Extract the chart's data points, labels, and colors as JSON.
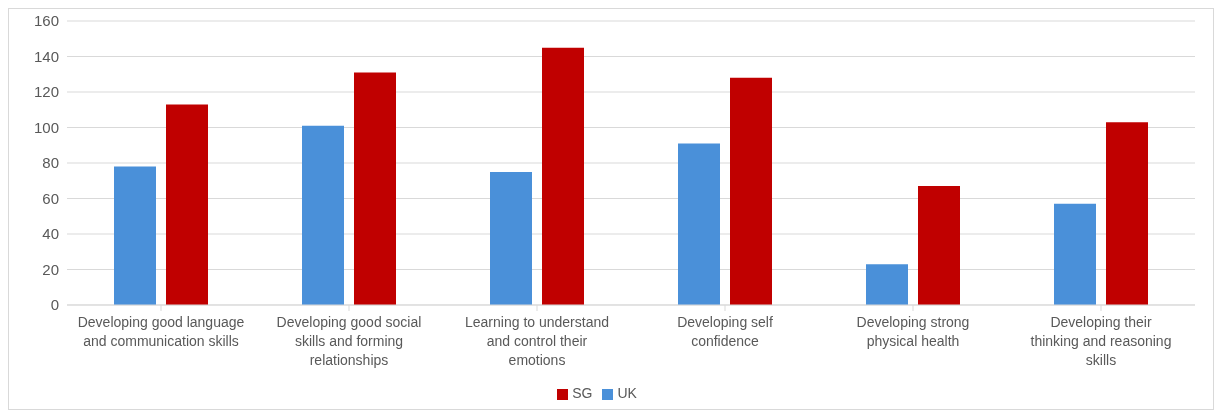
{
  "chart_data": {
    "type": "bar",
    "categories": [
      "Developing good language and communication skills",
      "Developing good social skills and forming relationships",
      "Learning to understand and control their emotions",
      "Developing self confidence",
      "Developing strong physical health",
      "Developing their thinking and reasoning skills"
    ],
    "series": [
      {
        "name": "UK",
        "color": "#4a90d9",
        "values": [
          78,
          101,
          75,
          91,
          23,
          57
        ]
      },
      {
        "name": "SG",
        "color": "#c00000",
        "values": [
          113,
          131,
          145,
          128,
          67,
          103
        ]
      }
    ],
    "ylim": [
      0,
      160
    ],
    "yticks": [
      0,
      20,
      40,
      60,
      80,
      100,
      120,
      140,
      160
    ],
    "grid": "y",
    "legend": "bottom"
  }
}
